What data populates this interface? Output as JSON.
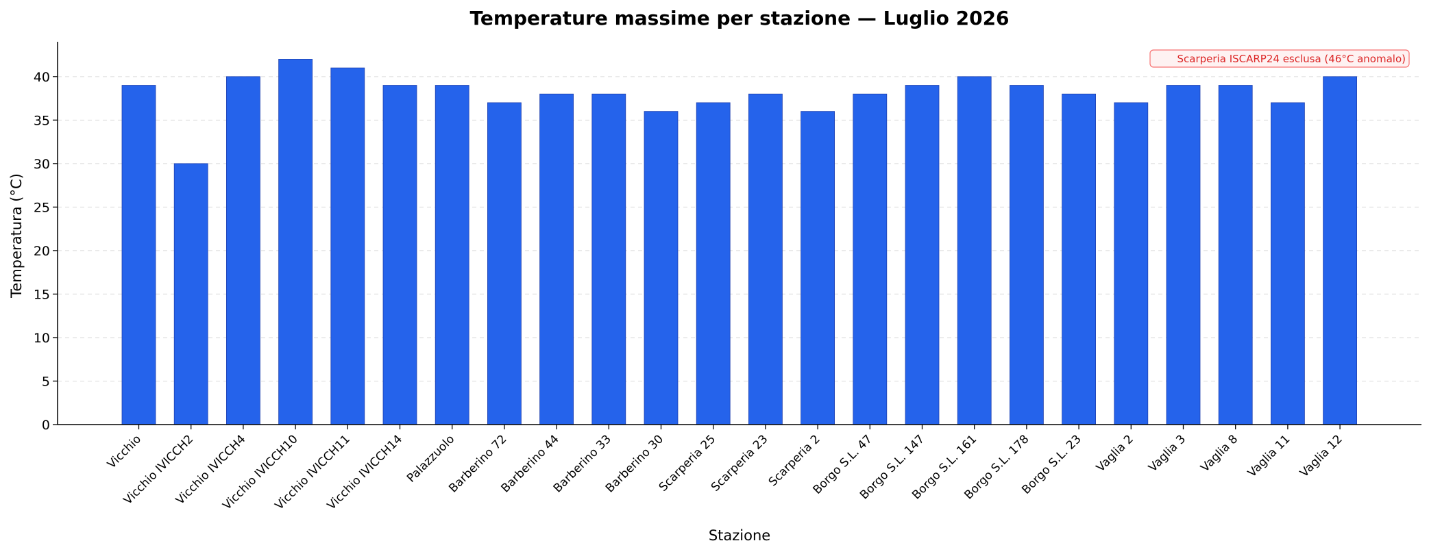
{
  "chart_data": {
    "type": "bar",
    "title": "Temperature massime per stazione — Luglio 2026",
    "xlabel": "Stazione",
    "ylabel": "Temperatura (°C)",
    "ylim": [
      0,
      44
    ],
    "yticks": [
      0,
      5,
      10,
      15,
      20,
      25,
      30,
      35,
      40
    ],
    "grid": "y-dashed",
    "categories": [
      "Vicchio",
      "Vicchio IVICCH2",
      "Vicchio IVICCH4",
      "Vicchio IVICCH10",
      "Vicchio IVICCH11",
      "Vicchio IVICCH14",
      "Palazzuolo",
      "Barberino 72",
      "Barberino 44",
      "Barberino 33",
      "Barberino 30",
      "Scarperia 25",
      "Scarperia 23",
      "Scarperia 2",
      "Borgo S.L. 47",
      "Borgo S.L. 147",
      "Borgo S.L. 161",
      "Borgo S.L. 178",
      "Borgo S.L. 23",
      "Vaglia 2",
      "Vaglia 3",
      "Vaglia 8",
      "Vaglia 11",
      "Vaglia 12"
    ],
    "values": [
      39,
      30,
      40,
      42,
      41,
      39,
      39,
      37,
      38,
      38,
      36,
      37,
      38,
      36,
      38,
      39,
      40,
      39,
      38,
      37,
      39,
      39,
      37,
      40
    ],
    "bar_color": "#2563eb",
    "bar_edge_color": "#1e40af",
    "annotation": {
      "text": "Scarperia ISCARP24 esclusa (46°C anomalo)",
      "position": "top-right",
      "text_color": "#dc2626",
      "border_color": "#f87171",
      "background": "#fef2f2"
    }
  }
}
